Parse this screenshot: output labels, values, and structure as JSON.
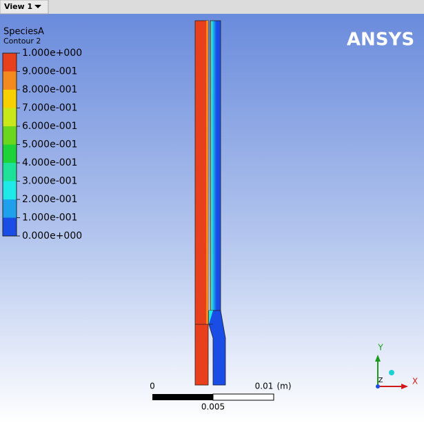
{
  "tab": {
    "title": "View 1"
  },
  "legend": {
    "title": "SpeciesA",
    "subtitle": "Contour 2",
    "labels": [
      "1.000e+000",
      "9.000e-001",
      "8.000e-001",
      "7.000e-001",
      "6.000e-001",
      "5.000e-001",
      "4.000e-001",
      "3.000e-001",
      "2.000e-001",
      "1.000e-001",
      "0.000e+000"
    ],
    "colors": [
      "#e8401c",
      "#f28a1e",
      "#f7d000",
      "#c8e81a",
      "#6ad61e",
      "#1ed23a",
      "#1ee29a",
      "#1ee8e8",
      "#1ea0ec",
      "#1a4ce6"
    ]
  },
  "logo": "ANSYS",
  "scale_bar": {
    "start": "0",
    "end": "0.01",
    "unit": "(m)",
    "mid": "0.005"
  },
  "axes": {
    "y": "Y",
    "x": "X",
    "z": "Z"
  }
}
